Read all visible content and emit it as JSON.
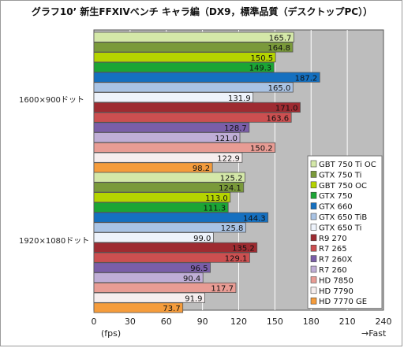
{
  "chart_data": {
    "type": "bar",
    "orientation": "horizontal",
    "title": "グラフ10’ 新生FFXIVベンチ キャラ編（DX9，標準品質（デスクトップPC））",
    "xlabel": "(fps)",
    "fast_label": "→Fast",
    "xlim": [
      0,
      240
    ],
    "xticks": [
      0,
      30,
      60,
      90,
      120,
      150,
      180,
      210,
      240
    ],
    "grid": true,
    "legend_position": "bottom-right",
    "groups": [
      "1600×900ドット",
      "1920×1080ドット"
    ],
    "series": [
      {
        "name": "GBT 750 Ti OC",
        "color": "#d4e8a8",
        "values": [
          165.7,
          125.2
        ]
      },
      {
        "name": "GTX 750 Ti",
        "color": "#7a9a3a",
        "values": [
          164.8,
          124.1
        ]
      },
      {
        "name": "GBT 750 OC",
        "color": "#b5d400",
        "values": [
          150.5,
          113.0
        ]
      },
      {
        "name": "GTX 750",
        "color": "#1ba535",
        "values": [
          149.3,
          111.3
        ]
      },
      {
        "name": "GTX 660",
        "color": "#1570c0",
        "values": [
          187.2,
          144.3
        ]
      },
      {
        "name": "GTX 650 TiB",
        "color": "#a9c3e4",
        "values": [
          165.0,
          125.8
        ]
      },
      {
        "name": "GTX 650 Ti",
        "color": "#eef3fb",
        "values": [
          131.9,
          99.0
        ]
      },
      {
        "name": "R9 270",
        "color": "#9e2b31",
        "values": [
          171.0,
          135.2
        ]
      },
      {
        "name": "R7 265",
        "color": "#cc4f50",
        "values": [
          163.6,
          129.1
        ]
      },
      {
        "name": "R7 260X",
        "color": "#7a5ea8",
        "values": [
          128.7,
          96.5
        ]
      },
      {
        "name": "R7 260",
        "color": "#bfaed6",
        "values": [
          121.0,
          90.4
        ]
      },
      {
        "name": "HD 7850",
        "color": "#e89c94",
        "values": [
          150.2,
          117.7
        ]
      },
      {
        "name": "HD 7790",
        "color": "#f6eeee",
        "values": [
          122.9,
          91.9
        ]
      },
      {
        "name": "HD 7770 GE",
        "color": "#f59c3c",
        "values": [
          98.2,
          73.7
        ]
      }
    ]
  }
}
